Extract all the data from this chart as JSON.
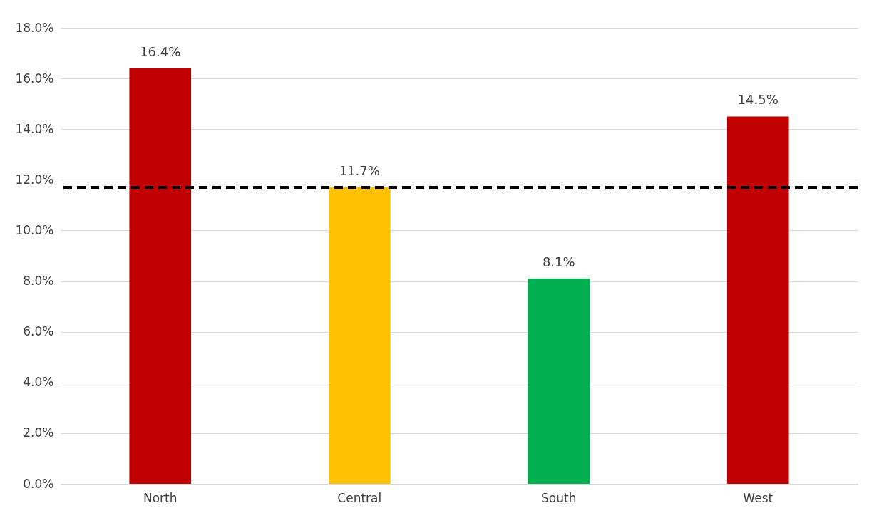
{
  "chart_data": {
    "type": "bar",
    "categories": [
      "North",
      "Central",
      "South",
      "West"
    ],
    "values": [
      16.4,
      11.7,
      8.1,
      14.5
    ],
    "colors": [
      "#c00000",
      "#ffc000",
      "#00b050",
      "#c00000"
    ],
    "value_labels": [
      "16.4%",
      "11.7%",
      "8.1%",
      "14.5%"
    ],
    "ylim": [
      0,
      18
    ],
    "yticks": [
      {
        "value": 0,
        "label": "0.0%"
      },
      {
        "value": 2,
        "label": "2.0%"
      },
      {
        "value": 4,
        "label": "4.0%"
      },
      {
        "value": 6,
        "label": "6.0%"
      },
      {
        "value": 8,
        "label": "8.0%"
      },
      {
        "value": 10,
        "label": "10.0%"
      },
      {
        "value": 12,
        "label": "12.0%"
      },
      {
        "value": 14,
        "label": "14.0%"
      },
      {
        "value": 16,
        "label": "16.0%"
      },
      {
        "value": 18,
        "label": "18.0%"
      }
    ],
    "ref_lines": [
      {
        "axis": "y",
        "value": 11.7,
        "color": "#000000",
        "line_style": "dashed"
      }
    ],
    "grid": "y"
  }
}
